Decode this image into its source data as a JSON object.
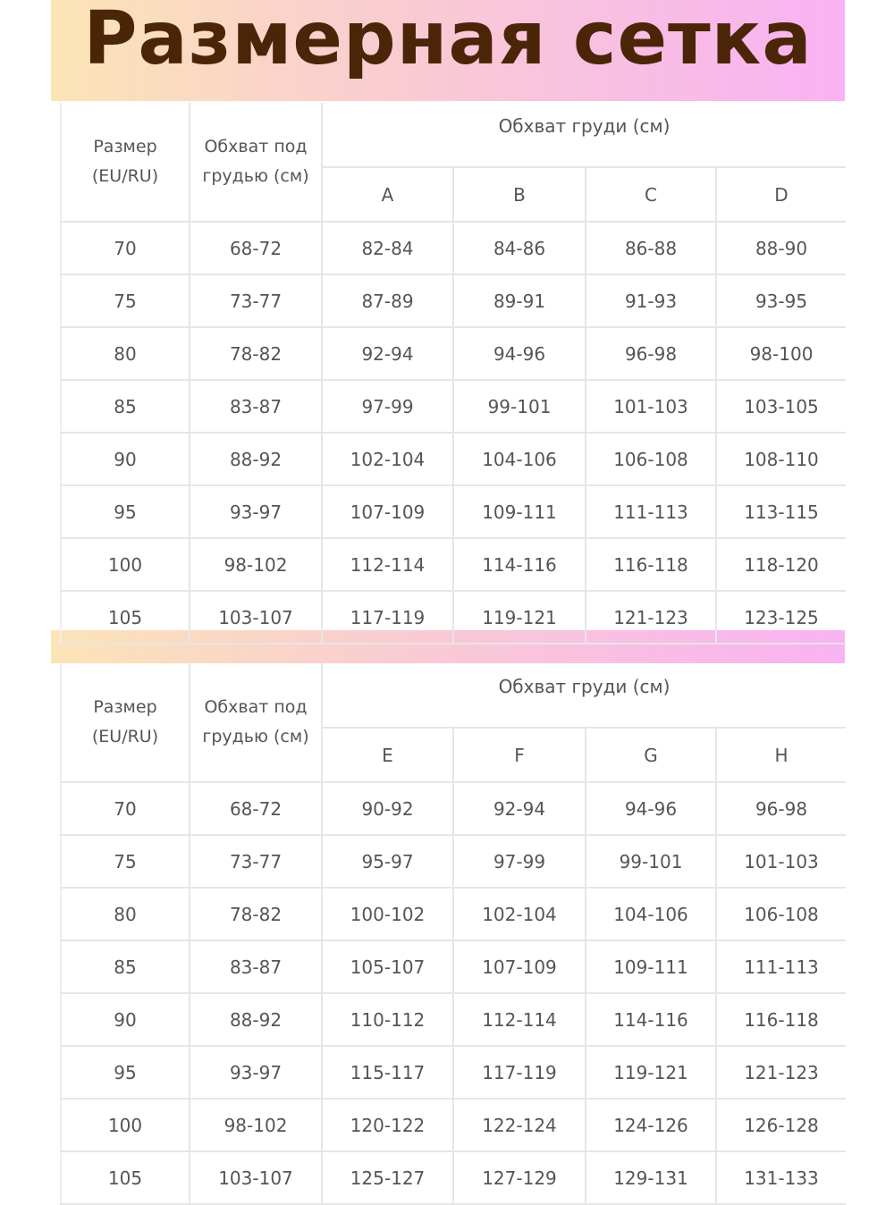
{
  "title": "Размерная сетка",
  "colors": {
    "title": "#4b2508",
    "gradient_start": "#fbe4b6",
    "gradient_end": "#f9b2f3"
  },
  "headers": {
    "size": "Размер\n(EU/RU)",
    "underbust": "Обхват под\nгрудью (см)",
    "bust": "Обхват груди (см)"
  },
  "tables": [
    {
      "cups": [
        "A",
        "B",
        "C",
        "D"
      ],
      "rows": [
        [
          "70",
          "68-72",
          "82-84",
          "84-86",
          "86-88",
          "88-90"
        ],
        [
          "75",
          "73-77",
          "87-89",
          "89-91",
          "91-93",
          "93-95"
        ],
        [
          "80",
          "78-82",
          "92-94",
          "94-96",
          "96-98",
          "98-100"
        ],
        [
          "85",
          "83-87",
          "97-99",
          "99-101",
          "101-103",
          "103-105"
        ],
        [
          "90",
          "88-92",
          "102-104",
          "104-106",
          "106-108",
          "108-110"
        ],
        [
          "95",
          "93-97",
          "107-109",
          "109-111",
          "111-113",
          "113-115"
        ],
        [
          "100",
          "98-102",
          "112-114",
          "114-116",
          "116-118",
          "118-120"
        ],
        [
          "105",
          "103-107",
          "117-119",
          "119-121",
          "121-123",
          "123-125"
        ]
      ]
    },
    {
      "cups": [
        "E",
        "F",
        "G",
        "H"
      ],
      "rows": [
        [
          "70",
          "68-72",
          "90-92",
          "92-94",
          "94-96",
          "96-98"
        ],
        [
          "75",
          "73-77",
          "95-97",
          "97-99",
          "99-101",
          "101-103"
        ],
        [
          "80",
          "78-82",
          "100-102",
          "102-104",
          "104-106",
          "106-108"
        ],
        [
          "85",
          "83-87",
          "105-107",
          "107-109",
          "109-111",
          "111-113"
        ],
        [
          "90",
          "88-92",
          "110-112",
          "112-114",
          "114-116",
          "116-118"
        ],
        [
          "95",
          "93-97",
          "115-117",
          "117-119",
          "119-121",
          "121-123"
        ],
        [
          "100",
          "98-102",
          "120-122",
          "122-124",
          "124-126",
          "126-128"
        ],
        [
          "105",
          "103-107",
          "125-127",
          "127-129",
          "129-131",
          "131-133"
        ]
      ]
    }
  ]
}
